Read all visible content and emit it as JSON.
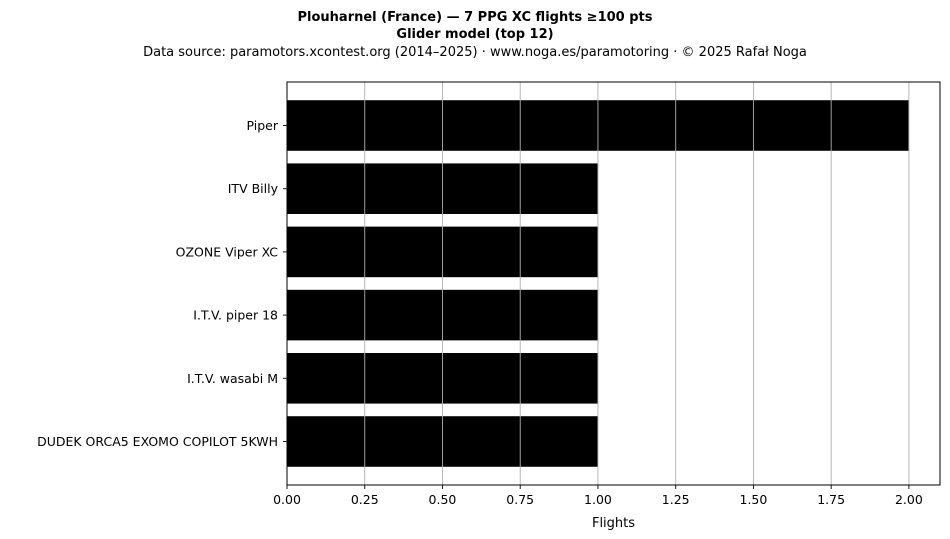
{
  "chart_data": {
    "type": "bar",
    "orientation": "horizontal",
    "title": "Plouharnel (France)  —  7 PPG XC flights ≥100 pts",
    "subtitle": "Glider model (top 12)",
    "source_line": "Data source: paramotors.xcontest.org (2014–2025)  ·  www.noga.es/paramotoring  ·  © 2025 Rafał Noga",
    "xlabel": "Flights",
    "ylabel": "",
    "categories": [
      "Piper",
      "ITV Billy",
      "OZONE Viper XC",
      "I.T.V. piper 18",
      "I.T.V. wasabi M",
      "DUDEK ORCA5 EXOMO COPILOT 5KWH"
    ],
    "values": [
      2,
      1,
      1,
      1,
      1,
      1
    ],
    "xlim": [
      0,
      2.1
    ],
    "xticks": [
      "0.00",
      "0.25",
      "0.50",
      "0.75",
      "1.00",
      "1.25",
      "1.50",
      "1.75",
      "2.00"
    ],
    "grid": "vertical",
    "bar_color": "#000000",
    "grid_color": "#b0b0b0"
  }
}
